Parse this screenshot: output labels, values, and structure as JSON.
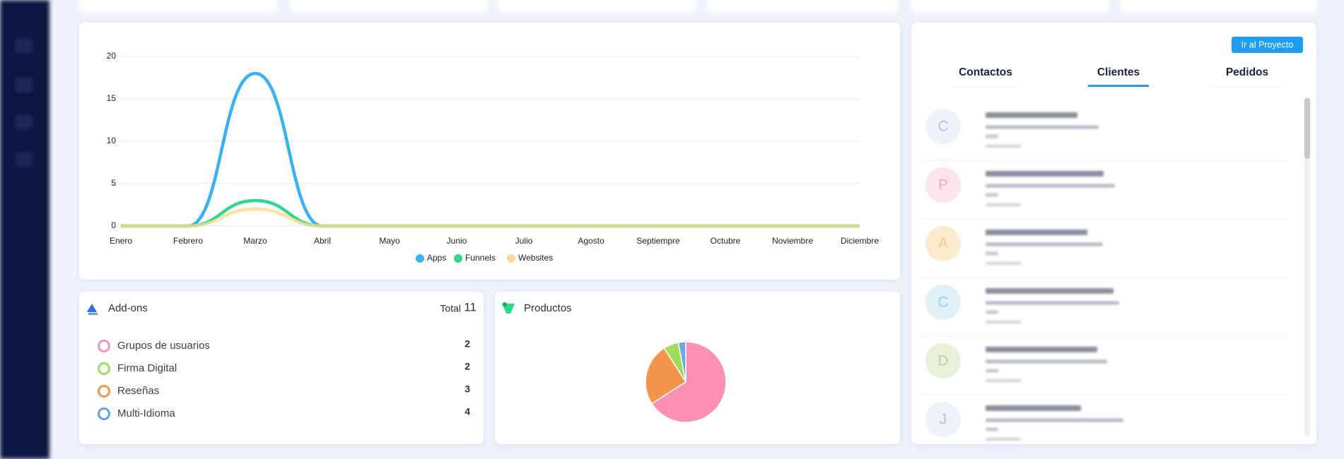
{
  "chart_data": [
    {
      "type": "line",
      "categories": [
        "Enero",
        "Febrero",
        "Marzo",
        "Abril",
        "Mayo",
        "Junio",
        "Julio",
        "Agosto",
        "Septiempre",
        "Octubre",
        "Noviembre",
        "Diciembre"
      ],
      "series": [
        {
          "name": "Apps",
          "color": "#3ab0f5",
          "values": [
            0,
            0,
            18,
            0,
            0,
            0,
            0,
            0,
            0,
            0,
            0,
            0
          ]
        },
        {
          "name": "Funnels",
          "color": "#2ed88a",
          "values": [
            0,
            0,
            3,
            0,
            0,
            0,
            0,
            0,
            0,
            0,
            0,
            0
          ]
        },
        {
          "name": "Websites",
          "color": "#fcd98f",
          "values": [
            0,
            0,
            2,
            0,
            0,
            0,
            0,
            0,
            0,
            0,
            0,
            0
          ]
        }
      ],
      "ylim": [
        0,
        20
      ],
      "yticks": [
        0,
        5,
        10,
        15,
        20
      ],
      "grid": true,
      "legend": "bottom"
    },
    {
      "type": "pie",
      "title": "Productos",
      "values": [
        66,
        25,
        6,
        3
      ],
      "colors": [
        "#fd8fb3",
        "#f3964c",
        "#9edc5b",
        "#6aa8e6"
      ]
    }
  ],
  "addons": {
    "title": "Add-ons",
    "total_label": "Total",
    "total": 11,
    "items": [
      {
        "name": "Grupos de usuarios",
        "count": 2,
        "color": "#fd8fb3"
      },
      {
        "name": "Firma Digital",
        "count": 2,
        "color": "#9edc5b"
      },
      {
        "name": "Reseñas",
        "count": 3,
        "color": "#f3964c"
      },
      {
        "name": "Multi-Idioma",
        "count": 4,
        "color": "#5fa3ea"
      }
    ]
  },
  "right_panel": {
    "button": "Ir al Proyecto",
    "tabs": [
      "Contactos",
      "Clientes",
      "Pedidos"
    ],
    "active_tab": 1,
    "contacts": [
      {
        "initial": "C",
        "color": "#eef2fb",
        "text_color": "#b8c2dc"
      },
      {
        "initial": "P",
        "color": "#fce4ef",
        "text_color": "#f3a9c8"
      },
      {
        "initial": "A",
        "color": "#fdebd0",
        "text_color": "#f1c98a"
      },
      {
        "initial": "C",
        "color": "#dff0f6",
        "text_color": "#9ccfdf"
      },
      {
        "initial": "D",
        "color": "#e8f1d9",
        "text_color": "#b9d39b"
      },
      {
        "initial": "J",
        "color": "#eef2fb",
        "text_color": "#b8c2dc"
      }
    ]
  }
}
